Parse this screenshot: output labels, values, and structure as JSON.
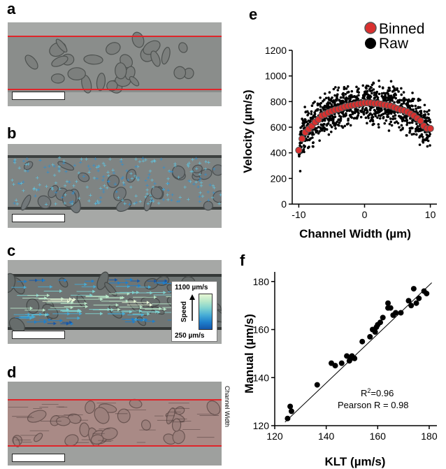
{
  "panels": {
    "a": "a",
    "b": "b",
    "c": "c",
    "d": "d",
    "e": "e",
    "f": "f"
  },
  "panel_c_legend": {
    "max": "1100 µm/s",
    "min": "250 µm/s",
    "axis_label": "Speed",
    "colors": [
      "#e7f7d6",
      "#b9e8c9",
      "#7fd2d0",
      "#46acd6",
      "#1e7fcc",
      "#1556a8"
    ]
  },
  "panel_d_side_label": "Channel Width",
  "colors": {
    "channel_border": "#e0252a",
    "binned_marker": "#d9302f",
    "raw_marker": "#000000"
  },
  "chart_data": [
    {
      "type": "scatter",
      "panel": "e",
      "xlabel": "Channel Width (µm)",
      "ylabel": "Velocity (µm/s)",
      "xlim": [
        -11,
        11
      ],
      "ylim": [
        0,
        1200
      ],
      "xticks": [
        -10,
        0,
        10
      ],
      "yticks": [
        0,
        200,
        400,
        600,
        800,
        1000,
        1200
      ],
      "legend": {
        "position": "top-right",
        "entries": [
          "Binned",
          "Raw"
        ]
      },
      "series": [
        {
          "name": "Binned",
          "x": [
            -10,
            -9.5,
            -9,
            -8.5,
            -8,
            -7.5,
            -7,
            -6.5,
            -6,
            -5.5,
            -5,
            -4.5,
            -4,
            -3.5,
            -3,
            -2.5,
            -2,
            -1.5,
            -1,
            -0.5,
            0,
            0.5,
            1,
            1.5,
            2,
            2.5,
            3,
            3.5,
            4,
            4.5,
            5,
            5.5,
            6,
            6.5,
            7,
            7.5,
            8,
            8.5,
            9,
            9.5,
            10
          ],
          "y": [
            420,
            510,
            560,
            585,
            610,
            640,
            660,
            690,
            700,
            715,
            725,
            735,
            740,
            750,
            760,
            765,
            770,
            775,
            780,
            785,
            790,
            790,
            790,
            785,
            785,
            780,
            775,
            770,
            765,
            755,
            745,
            735,
            730,
            720,
            705,
            690,
            670,
            650,
            610,
            590,
            590
          ]
        },
        {
          "name": "Raw",
          "description": "~1200 raw points scattered around binned curve (range ~200–1100 µm/s)"
        }
      ]
    },
    {
      "type": "scatter",
      "panel": "f",
      "xlabel": "KLT (µm/s)",
      "ylabel": "Manual (µm/s)",
      "xlim": [
        120,
        183
      ],
      "ylim": [
        120,
        184
      ],
      "xticks": [
        120,
        140,
        160,
        180
      ],
      "yticks": [
        120,
        140,
        160,
        180
      ],
      "annotation_r2": "R",
      "annotation_r2_sup": "2",
      "annotation_r2_val": "=0.96",
      "annotation_pearson": "Pearson R = 0.98",
      "fit_line": {
        "x": [
          124,
          181
        ],
        "y": [
          121.5,
          179.5
        ]
      },
      "points": {
        "x": [
          125,
          126,
          126.5,
          136.5,
          142,
          143.5,
          146,
          148,
          149,
          149.5,
          150,
          151,
          154,
          157,
          158,
          159,
          159.5,
          160,
          161,
          162,
          164,
          164,
          165,
          166,
          167,
          169,
          172,
          173,
          174,
          175,
          176,
          178,
          179
        ],
        "y": [
          123,
          128,
          126,
          137,
          146,
          145,
          146,
          149,
          147,
          148,
          149,
          148,
          155,
          157,
          160,
          159,
          161,
          162,
          163,
          165,
          169,
          171,
          169,
          166,
          167,
          167,
          172,
          170,
          177,
          171,
          173,
          176,
          175
        ]
      }
    }
  ]
}
